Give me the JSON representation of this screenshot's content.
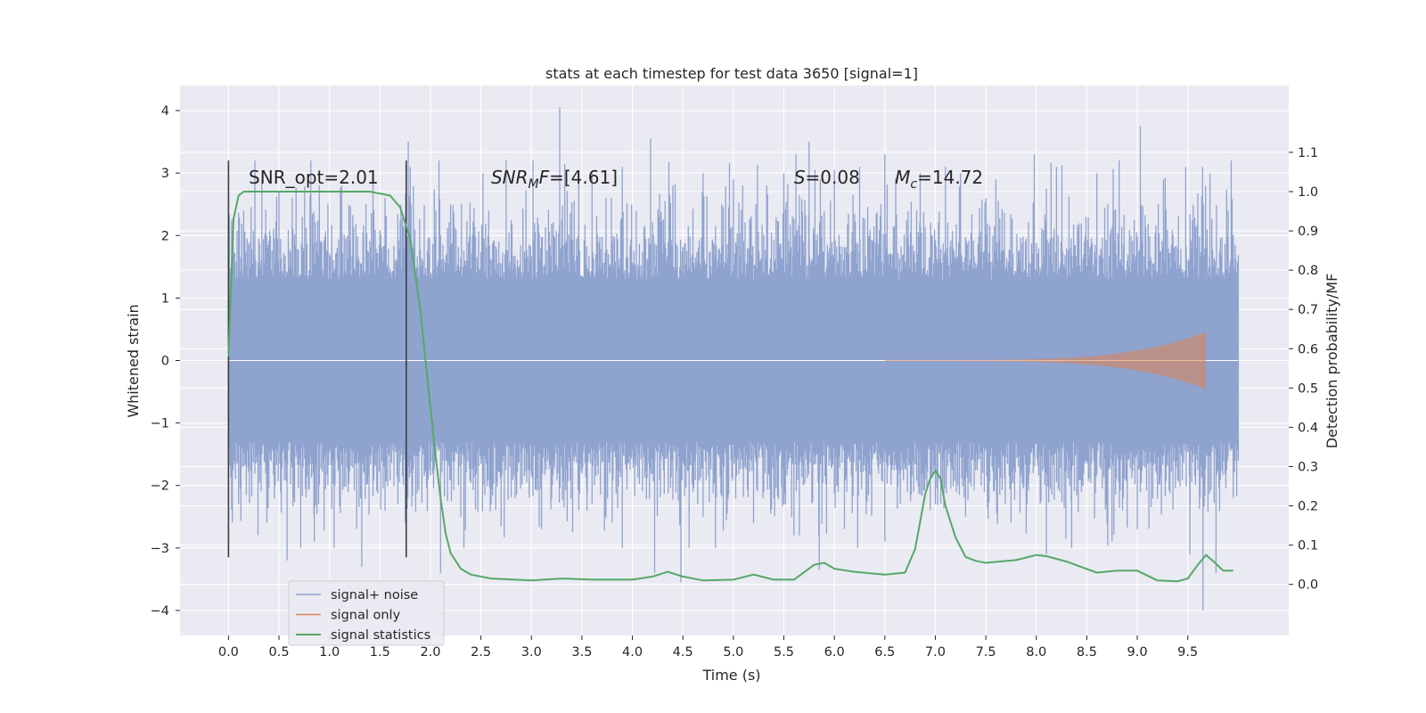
{
  "chart_data": {
    "type": "line",
    "title": "stats at each timestep for test data 3650 [signal=1]",
    "xlabel": "Time (s)",
    "ylabel": "Whitened strain",
    "y2label": "Detection probability/MF",
    "xlim": [
      -0.48,
      10.5
    ],
    "ylim": [
      -4.4,
      4.4
    ],
    "y2lim": [
      -0.13,
      1.27
    ],
    "x_ticks": [
      0.0,
      0.5,
      1.0,
      1.5,
      2.0,
      2.5,
      3.0,
      3.5,
      4.0,
      4.5,
      5.0,
      5.5,
      6.0,
      6.5,
      7.0,
      7.5,
      8.0,
      8.5,
      9.0,
      9.5
    ],
    "x_tick_labels": [
      "0.0",
      "0.5",
      "1.0",
      "1.5",
      "2.0",
      "2.5",
      "3.0",
      "3.5",
      "4.0",
      "4.5",
      "5.0",
      "5.5",
      "6.0",
      "6.5",
      "7.0",
      "7.5",
      "8.0",
      "8.5",
      "9.0",
      "9.5"
    ],
    "y_ticks": [
      -4,
      -3,
      -2,
      -1,
      0,
      1,
      2,
      3,
      4
    ],
    "y_tick_labels": [
      "−4",
      "−3",
      "−2",
      "−1",
      "0",
      "1",
      "2",
      "3",
      "4"
    ],
    "y2_ticks": [
      0.0,
      0.1,
      0.2,
      0.3,
      0.4,
      0.5,
      0.6,
      0.7,
      0.8,
      0.9,
      1.0,
      1.1
    ],
    "y2_tick_labels": [
      "0.0",
      "0.1",
      "0.2",
      "0.3",
      "0.4",
      "0.5",
      "0.6",
      "0.7",
      "0.8",
      "0.9",
      "1.0",
      "1.1"
    ],
    "grid": true,
    "legend_position": "lower-left",
    "colors": {
      "background": "#eaeaf2",
      "grid": "#ffffff",
      "signal_noise": "#8fa3cf",
      "signal_only": "#dd8452",
      "statistics": "#55a868",
      "markers": "#3c3c3c"
    },
    "annotations": [
      {
        "text": "SNR_opt=2.01",
        "x": 0.2,
        "y2": 1.02
      },
      {
        "text": "SNR_MF=[4.61]",
        "x": 2.6,
        "y2": 1.02
      },
      {
        "text": "S=0.08",
        "x": 5.6,
        "y2": 1.02
      },
      {
        "text": "M_c=14.72",
        "x": 6.6,
        "y2": 1.02
      }
    ],
    "vertical_markers": [
      {
        "x": 0.0,
        "y_from": -3.15,
        "y_to": 3.2
      },
      {
        "x": 1.76,
        "y_from": -3.15,
        "y_to": 3.2
      }
    ],
    "series": [
      {
        "name": "signal+ noise",
        "style": "noise band",
        "x_range": [
          0.0,
          10.0
        ],
        "core_amplitude": 1.3,
        "max_peaks": [
          [
            0.15,
            2.4
          ],
          [
            0.33,
            2.9
          ],
          [
            0.5,
            2.7
          ],
          [
            0.63,
            2.6
          ],
          [
            0.9,
            2.8
          ],
          [
            1.12,
            2.8
          ],
          [
            1.55,
            2.6
          ],
          [
            1.78,
            3.5
          ],
          [
            2.2,
            2.5
          ],
          [
            2.52,
            3.0
          ],
          [
            2.75,
            3.2
          ],
          [
            3.28,
            4.05
          ],
          [
            3.6,
            3.0
          ],
          [
            3.9,
            3.1
          ],
          [
            4.18,
            3.55
          ],
          [
            4.4,
            2.8
          ],
          [
            4.7,
            3.0
          ],
          [
            5.0,
            2.9
          ],
          [
            5.33,
            2.8
          ],
          [
            5.5,
            3.0
          ],
          [
            5.62,
            3.3
          ],
          [
            5.75,
            3.5
          ],
          [
            6.0,
            3.05
          ],
          [
            6.25,
            3.1
          ],
          [
            6.5,
            3.3
          ],
          [
            6.85,
            3.0
          ],
          [
            7.1,
            3.1
          ],
          [
            7.25,
            3.0
          ],
          [
            7.6,
            2.9
          ],
          [
            7.98,
            3.3
          ],
          [
            8.2,
            3.1
          ],
          [
            8.6,
            3.0
          ],
          [
            8.82,
            3.2
          ],
          [
            9.03,
            3.75
          ],
          [
            9.26,
            2.9
          ],
          [
            9.48,
            3.1
          ],
          [
            9.72,
            3.0
          ],
          [
            9.95,
            2.0
          ]
        ],
        "min_peaks": [
          [
            0.1,
            -2.3
          ],
          [
            0.38,
            -2.6
          ],
          [
            0.58,
            -3.2
          ],
          [
            0.85,
            -2.9
          ],
          [
            1.32,
            -3.3
          ],
          [
            1.55,
            -2.4
          ],
          [
            1.75,
            -2.6
          ],
          [
            2.1,
            -3.4
          ],
          [
            2.3,
            -2.5
          ],
          [
            2.6,
            -2.3
          ],
          [
            3.1,
            -2.7
          ],
          [
            3.55,
            -2.4
          ],
          [
            3.8,
            -2.6
          ],
          [
            4.22,
            -3.4
          ],
          [
            4.48,
            -3.55
          ],
          [
            4.7,
            -2.5
          ],
          [
            5.2,
            -2.6
          ],
          [
            5.6,
            -2.8
          ],
          [
            5.85,
            -3.35
          ],
          [
            6.1,
            -2.7
          ],
          [
            6.5,
            -2.9
          ],
          [
            6.95,
            -2.4
          ],
          [
            7.3,
            -2.5
          ],
          [
            7.75,
            -2.6
          ],
          [
            8.1,
            -3.1
          ],
          [
            8.35,
            -3.0
          ],
          [
            8.75,
            -2.9
          ],
          [
            9.0,
            -2.7
          ],
          [
            9.52,
            -3.1
          ],
          [
            9.65,
            -4.0
          ],
          [
            9.78,
            -3.4
          ],
          [
            9.95,
            -2.2
          ]
        ]
      },
      {
        "name": "signal only",
        "style": "chirp",
        "x_start": 6.5,
        "x_end": 9.68,
        "peak_amplitude": 0.45
      },
      {
        "name": "signal statistics",
        "axis": "right",
        "x": [
          0.0,
          0.05,
          0.1,
          0.15,
          0.2,
          0.3,
          0.5,
          1.0,
          1.4,
          1.6,
          1.7,
          1.8,
          1.9,
          2.0,
          2.05,
          2.1,
          2.15,
          2.2,
          2.3,
          2.4,
          2.6,
          3.0,
          3.3,
          3.6,
          4.0,
          4.2,
          4.35,
          4.5,
          4.7,
          5.0,
          5.2,
          5.4,
          5.6,
          5.8,
          5.9,
          6.0,
          6.2,
          6.5,
          6.7,
          6.8,
          6.9,
          6.95,
          7.0,
          7.05,
          7.1,
          7.2,
          7.3,
          7.4,
          7.5,
          7.8,
          8.0,
          8.1,
          8.3,
          8.6,
          8.8,
          9.0,
          9.2,
          9.4,
          9.5,
          9.6,
          9.68,
          9.75,
          9.85,
          9.95
        ],
        "values": [
          0.58,
          0.93,
          0.99,
          1.0,
          1.0,
          1.0,
          1.0,
          1.0,
          1.0,
          0.99,
          0.96,
          0.88,
          0.7,
          0.45,
          0.33,
          0.22,
          0.13,
          0.08,
          0.04,
          0.025,
          0.015,
          0.01,
          0.015,
          0.012,
          0.012,
          0.02,
          0.032,
          0.02,
          0.01,
          0.012,
          0.025,
          0.012,
          0.012,
          0.05,
          0.055,
          0.04,
          0.032,
          0.025,
          0.03,
          0.09,
          0.23,
          0.27,
          0.29,
          0.27,
          0.2,
          0.12,
          0.07,
          0.06,
          0.055,
          0.062,
          0.075,
          0.072,
          0.058,
          0.03,
          0.035,
          0.035,
          0.01,
          0.008,
          0.015,
          0.05,
          0.075,
          0.06,
          0.035,
          0.035
        ]
      }
    ],
    "legend": [
      {
        "label": "signal+ noise",
        "series": "signal_noise"
      },
      {
        "label": "signal only",
        "series": "signal_only"
      },
      {
        "label": "signal statistics",
        "series": "statistics"
      }
    ]
  }
}
